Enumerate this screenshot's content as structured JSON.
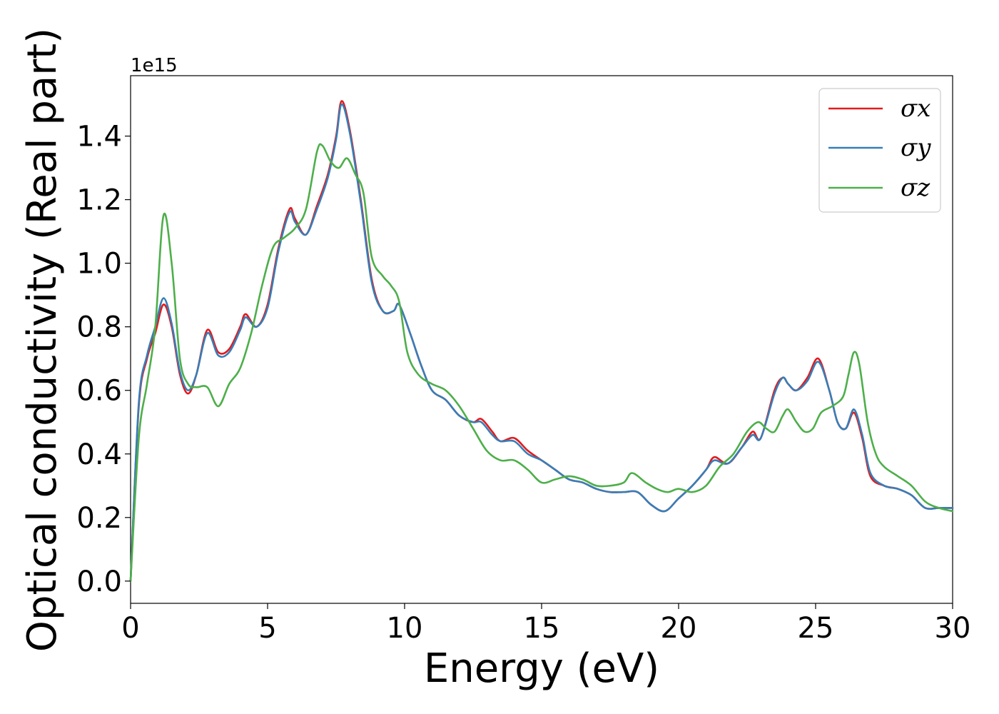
{
  "chart_data": {
    "type": "line",
    "xlabel": "Energy (eV)",
    "ylabel": "Optical conductivity (Real part)",
    "y_offset_text": "1e15",
    "xlim": [
      0,
      30
    ],
    "ylim": [
      -0.07,
      1.59
    ],
    "x_ticks": [
      0,
      5,
      10,
      15,
      20,
      25,
      30
    ],
    "x_tick_labels": [
      "0",
      "5",
      "10",
      "15",
      "20",
      "25",
      "30"
    ],
    "y_ticks": [
      0.0,
      0.2,
      0.4,
      0.6,
      0.8,
      1.0,
      1.2,
      1.4
    ],
    "y_tick_labels": [
      "0.0",
      "0.2",
      "0.4",
      "0.6",
      "0.8",
      "1.0",
      "1.2",
      "1.4"
    ],
    "grid": false,
    "legend_position": "top-right",
    "colors": {
      "sigma_x": "#e41a1c",
      "sigma_y": "#377eb8",
      "sigma_z": "#4daf4a"
    },
    "series": [
      {
        "name": "σx",
        "color": "#e41a1c",
        "x": [
          0,
          0.3,
          0.6,
          0.9,
          1.2,
          1.5,
          1.8,
          2.1,
          2.4,
          2.8,
          3.2,
          3.6,
          4.0,
          4.2,
          4.6,
          5.0,
          5.4,
          5.8,
          6.0,
          6.4,
          6.8,
          7.2,
          7.5,
          7.7,
          8.0,
          8.4,
          8.8,
          9.2,
          9.6,
          9.8,
          10.2,
          10.6,
          11.0,
          11.5,
          12.0,
          12.5,
          12.8,
          13.2,
          13.5,
          14.0,
          14.5,
          15.0,
          15.5,
          16.0,
          16.5,
          17.0,
          17.5,
          18.0,
          18.5,
          19.0,
          19.5,
          20.0,
          20.5,
          21.0,
          21.3,
          21.8,
          22.3,
          22.7,
          23.0,
          23.5,
          23.8,
          24.0,
          24.3,
          24.7,
          25.1,
          25.5,
          25.8,
          26.1,
          26.4,
          26.7,
          27.0,
          27.5,
          28.0,
          28.5,
          29.0,
          29.5,
          30.0
        ],
        "values": [
          0.0,
          0.55,
          0.7,
          0.78,
          0.87,
          0.8,
          0.65,
          0.59,
          0.65,
          0.79,
          0.72,
          0.73,
          0.8,
          0.84,
          0.8,
          0.87,
          1.05,
          1.17,
          1.14,
          1.09,
          1.18,
          1.28,
          1.4,
          1.51,
          1.42,
          1.2,
          0.95,
          0.85,
          0.85,
          0.87,
          0.78,
          0.68,
          0.6,
          0.57,
          0.52,
          0.5,
          0.51,
          0.47,
          0.44,
          0.45,
          0.41,
          0.38,
          0.35,
          0.32,
          0.31,
          0.29,
          0.28,
          0.28,
          0.28,
          0.24,
          0.22,
          0.26,
          0.3,
          0.35,
          0.39,
          0.37,
          0.42,
          0.47,
          0.45,
          0.6,
          0.64,
          0.62,
          0.6,
          0.64,
          0.7,
          0.6,
          0.5,
          0.48,
          0.53,
          0.45,
          0.33,
          0.3,
          0.29,
          0.27,
          0.23,
          0.23,
          0.23
        ]
      },
      {
        "name": "σy",
        "color": "#377eb8",
        "x": [
          0,
          0.3,
          0.6,
          0.9,
          1.2,
          1.5,
          1.8,
          2.1,
          2.4,
          2.8,
          3.2,
          3.6,
          4.0,
          4.2,
          4.6,
          5.0,
          5.4,
          5.8,
          6.0,
          6.4,
          6.8,
          7.2,
          7.5,
          7.7,
          8.0,
          8.4,
          8.8,
          9.2,
          9.6,
          9.8,
          10.2,
          10.6,
          11.0,
          11.5,
          12.0,
          12.5,
          12.8,
          13.2,
          13.5,
          14.0,
          14.5,
          15.0,
          15.5,
          16.0,
          16.5,
          17.0,
          17.5,
          18.0,
          18.5,
          19.0,
          19.5,
          20.0,
          20.5,
          21.0,
          21.3,
          21.8,
          22.3,
          22.7,
          23.0,
          23.5,
          23.8,
          24.0,
          24.3,
          24.7,
          25.1,
          25.5,
          25.8,
          26.1,
          26.4,
          26.7,
          27.0,
          27.5,
          28.0,
          28.5,
          29.0,
          29.5,
          30.0
        ],
        "values": [
          0.0,
          0.56,
          0.71,
          0.8,
          0.89,
          0.81,
          0.66,
          0.6,
          0.65,
          0.78,
          0.71,
          0.72,
          0.79,
          0.83,
          0.8,
          0.86,
          1.04,
          1.16,
          1.13,
          1.09,
          1.17,
          1.27,
          1.39,
          1.5,
          1.41,
          1.19,
          0.94,
          0.85,
          0.85,
          0.87,
          0.78,
          0.68,
          0.6,
          0.57,
          0.52,
          0.5,
          0.5,
          0.46,
          0.44,
          0.44,
          0.4,
          0.38,
          0.35,
          0.32,
          0.31,
          0.29,
          0.28,
          0.28,
          0.28,
          0.24,
          0.22,
          0.26,
          0.3,
          0.35,
          0.38,
          0.37,
          0.42,
          0.46,
          0.45,
          0.59,
          0.64,
          0.62,
          0.6,
          0.63,
          0.69,
          0.6,
          0.5,
          0.48,
          0.54,
          0.46,
          0.34,
          0.3,
          0.29,
          0.27,
          0.23,
          0.23,
          0.23
        ]
      },
      {
        "name": "σz",
        "color": "#4daf4a",
        "x": [
          0,
          0.3,
          0.6,
          0.9,
          1.2,
          1.5,
          1.8,
          2.1,
          2.4,
          2.8,
          3.2,
          3.6,
          4.0,
          4.4,
          4.8,
          5.2,
          5.6,
          6.0,
          6.4,
          6.8,
          7.0,
          7.3,
          7.6,
          7.9,
          8.2,
          8.5,
          8.8,
          9.2,
          9.5,
          9.8,
          10.1,
          10.5,
          11.0,
          11.5,
          12.0,
          12.5,
          13.0,
          13.5,
          14.0,
          14.5,
          15.0,
          15.5,
          16.0,
          16.5,
          17.0,
          17.5,
          18.0,
          18.3,
          18.8,
          19.2,
          19.6,
          20.0,
          20.5,
          21.0,
          21.5,
          22.0,
          22.5,
          22.9,
          23.2,
          23.5,
          23.8,
          24.0,
          24.3,
          24.6,
          24.9,
          25.2,
          25.6,
          26.0,
          26.2,
          26.4,
          26.6,
          26.9,
          27.2,
          27.5,
          28.0,
          28.5,
          29.0,
          29.5,
          30.0
        ],
        "values": [
          0.0,
          0.45,
          0.62,
          0.8,
          1.15,
          1.0,
          0.7,
          0.62,
          0.61,
          0.61,
          0.55,
          0.62,
          0.67,
          0.78,
          0.93,
          1.05,
          1.08,
          1.11,
          1.17,
          1.35,
          1.37,
          1.32,
          1.3,
          1.33,
          1.28,
          1.22,
          1.02,
          0.96,
          0.93,
          0.88,
          0.72,
          0.65,
          0.62,
          0.6,
          0.55,
          0.48,
          0.41,
          0.38,
          0.38,
          0.35,
          0.31,
          0.32,
          0.33,
          0.32,
          0.3,
          0.3,
          0.31,
          0.34,
          0.31,
          0.29,
          0.28,
          0.29,
          0.28,
          0.3,
          0.36,
          0.4,
          0.47,
          0.5,
          0.48,
          0.47,
          0.52,
          0.54,
          0.5,
          0.47,
          0.48,
          0.53,
          0.55,
          0.58,
          0.65,
          0.72,
          0.68,
          0.5,
          0.4,
          0.36,
          0.33,
          0.3,
          0.25,
          0.23,
          0.22
        ]
      }
    ]
  }
}
